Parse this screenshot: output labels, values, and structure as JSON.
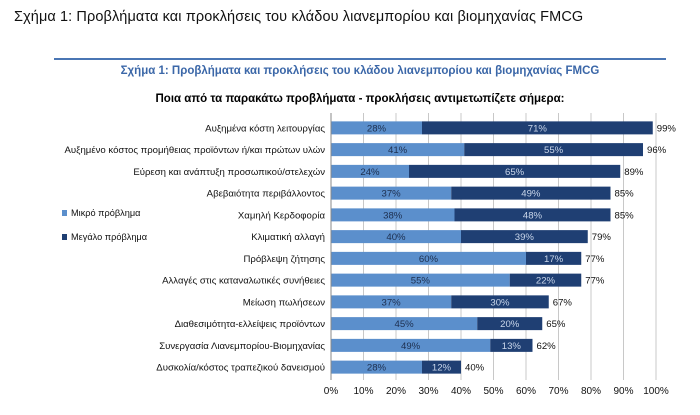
{
  "document": {
    "caption": "Σχήμα 1: Προβλήματα και προκλήσεις του κλάδου λιανεμπορίου και βιομηχανίας FMCG"
  },
  "chart_data": {
    "type": "bar",
    "orientation": "horizontal",
    "stacked": true,
    "title": "Σχήμα 1: Προβλήματα και προκλήσεις του κλάδου λιανεμπορίου και βιομηχανίας FMCG",
    "subtitle": "Ποια από τα παρακάτω προβλήματα - προκλήσεις αντιμετωπίζετε σήμερα:",
    "categories": [
      "Αυξημένα κόστη λειτουργίας",
      "Αυξημένο κόστος προμήθειας προϊόντων ή/και πρώτων υλών",
      "Εύρεση και ανάπτυξη προσωπικού/στελεχών",
      "Αβεβαιότητα περιβάλλοντος",
      "Χαμηλή Κερδοφορία",
      "Κλιματική αλλαγή",
      "Πρόβλεψη ζήτησης",
      "Αλλαγές στις καταναλωτικές συνήθειες",
      "Μείωση πωλήσεων",
      "Διαθεσιμότητα-ελλείψεις προϊόντων",
      "Συνεργασία Λιανεμπορίου-Βιομηχανίας",
      "Δυσκολία/κόστος τραπεζικού δανεισμού"
    ],
    "series": [
      {
        "name": "Μικρό πρόβλημα",
        "color": "#5b8fcc",
        "values": [
          28,
          41,
          24,
          37,
          38,
          40,
          60,
          55,
          37,
          45,
          49,
          28
        ],
        "labels": [
          "28%",
          "41%",
          "24%",
          "37%",
          "38%",
          "40%",
          "60%",
          "55%",
          "37%",
          "45%",
          "49%",
          "28%"
        ]
      },
      {
        "name": "Μεγάλο πρόβλημα",
        "color": "#1f3f73",
        "values": [
          71,
          55,
          65,
          49,
          48,
          39,
          17,
          22,
          30,
          20,
          13,
          12
        ],
        "labels": [
          "71%",
          "55%",
          "65%",
          "49%",
          "48%",
          "39%",
          "17%",
          "22%",
          "30%",
          "20%",
          "13%",
          "12%"
        ]
      }
    ],
    "totals": [
      "99%",
      "96%",
      "89%",
      "85%",
      "85%",
      "79%",
      "77%",
      "77%",
      "67%",
      "65%",
      "62%",
      "40%"
    ],
    "xlim": [
      0,
      100
    ],
    "xticks": [
      "0%",
      "10%",
      "20%",
      "30%",
      "40%",
      "50%",
      "60%",
      "70%",
      "80%",
      "90%",
      "100%"
    ],
    "grid": true,
    "legend_position": "left"
  }
}
